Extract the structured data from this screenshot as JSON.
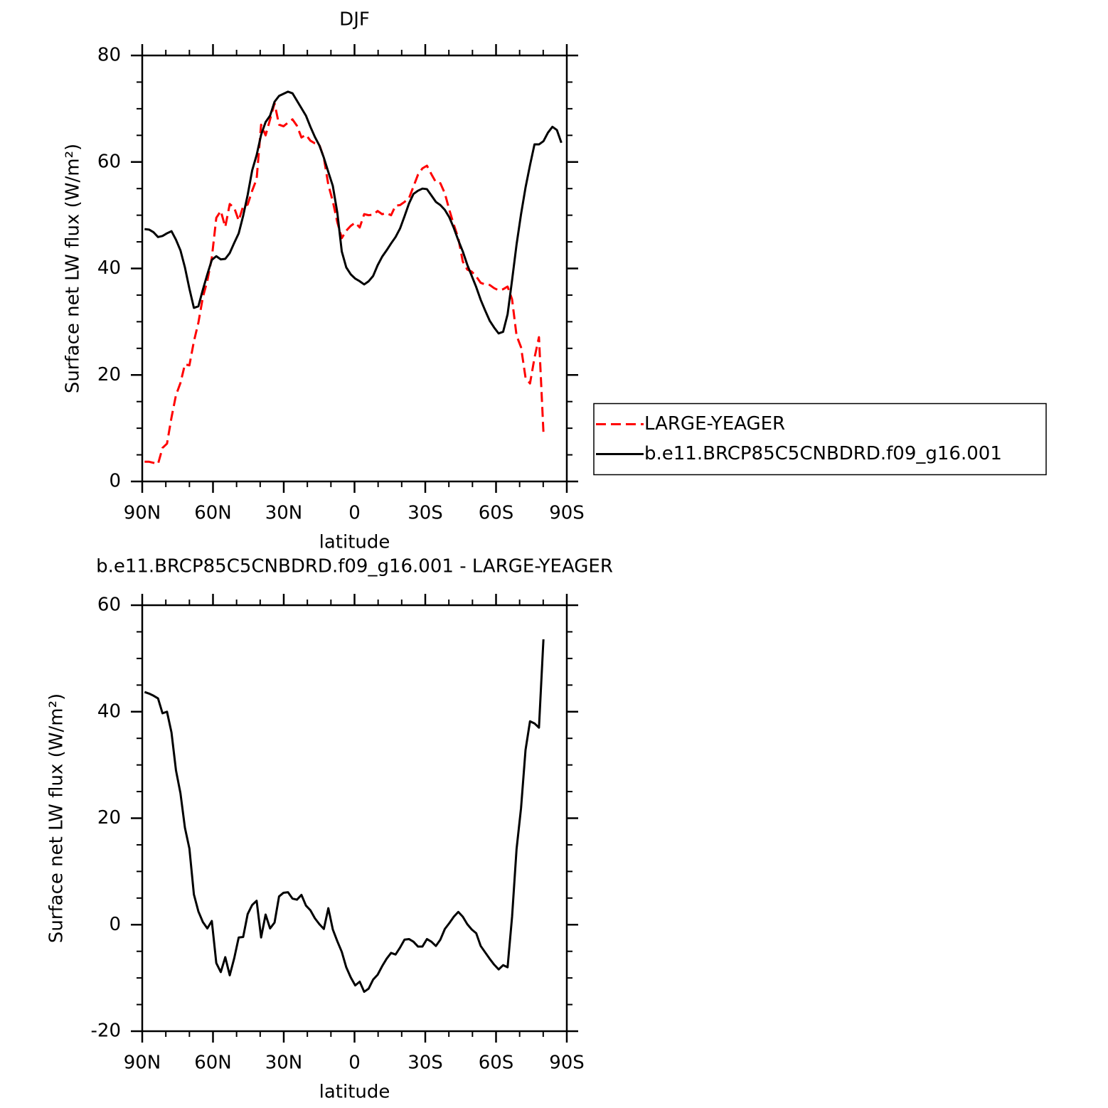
{
  "chart_data": [
    {
      "type": "line",
      "title": "DJF",
      "xlabel": "latitude",
      "ylabel": "Surface net LW flux (W/m²)",
      "x": [
        89,
        87.1,
        85.2,
        83.3,
        81.4,
        79.5,
        77.6,
        75.7,
        73.8,
        71.9,
        70,
        68.1,
        66.2,
        64.3,
        62.4,
        60.5,
        58.6,
        56.7,
        54.8,
        52.9,
        51,
        49.1,
        47.2,
        45.3,
        43.4,
        41.5,
        39.6,
        37.7,
        35.8,
        33.9,
        32,
        30.1,
        28.2,
        26.3,
        24.4,
        22.5,
        20.6,
        18.7,
        16.8,
        14.9,
        13,
        11.1,
        9.2,
        7.3,
        5.4,
        3.5,
        1.6,
        -0.3,
        -2.2,
        -4.1,
        -6,
        -7.9,
        -9.8,
        -11.7,
        -13.6,
        -15.5,
        -17.4,
        -19.3,
        -21.2,
        -23.1,
        -25,
        -26.9,
        -28.8,
        -30.7,
        -32.6,
        -34.5,
        -36.4,
        -38.3,
        -40.2,
        -42.1,
        -44,
        -45.9,
        -47.8,
        -49.7,
        -51.6,
        -53.5,
        -55.4,
        -57.3,
        -59.2,
        -61.1,
        -63,
        -64.9,
        -66.8,
        -68.7,
        -70.6,
        -72.5,
        -74.4,
        -76.3,
        -78.2,
        -80.1,
        -82,
        -83.9,
        -85.8,
        -87.7
      ],
      "series": [
        {
          "name": "LARGE-YEAGER",
          "color": "#ff0000",
          "dash": "dashed",
          "values": [
            3.7,
            3.7,
            3.5,
            3.3,
            6.3,
            7.1,
            12,
            16.2,
            18.5,
            22,
            21.8,
            26.3,
            29.8,
            34.6,
            37.7,
            42,
            49.5,
            50.8,
            47.8,
            52.1,
            51.4,
            49,
            51.7,
            52,
            54.6,
            56.8,
            67,
            65,
            68,
            71,
            67,
            66.7,
            67.4,
            68,
            66.8,
            64.6,
            65.1,
            64,
            63.5,
            63.2,
            60.8,
            55.7,
            52.6,
            48.7,
            45.7,
            47.1,
            48,
            48.6,
            47.7,
            50.2,
            50,
            50.1,
            50.8,
            50.2,
            50.4,
            50,
            51.8,
            51.9,
            52.5,
            53.2,
            55.4,
            57.6,
            58.8,
            59.3,
            57.7,
            56.2,
            56,
            54.1,
            51,
            48.2,
            45.7,
            41.3,
            39.8,
            39.4,
            38.5,
            37.3,
            37,
            36.9,
            36.3,
            35.9,
            36.1,
            36.6,
            34.2,
            27.4,
            25.2,
            19.5,
            18.4,
            23.2,
            27.1,
            9.2,
            null,
            null,
            null,
            null
          ]
        },
        {
          "name": "b.e11.BRCP85C5CNBDRD.f09_g16.001",
          "color": "#000000",
          "dash": "solid",
          "values": [
            47.4,
            47.3,
            46.8,
            45.9,
            46.1,
            46.6,
            47,
            45.4,
            43.4,
            40.2,
            36.2,
            32.6,
            32.9,
            36,
            38.9,
            41.6,
            42.3,
            41.7,
            41.8,
            42.9,
            44.8,
            46.6,
            49.9,
            53.8,
            58.4,
            61.3,
            65.1,
            67.5,
            68.7,
            71.3,
            72.4,
            72.8,
            73.2,
            72.9,
            71.5,
            70.1,
            68.7,
            66.6,
            64.7,
            63.1,
            60.8,
            58.1,
            55.5,
            50.5,
            43.2,
            40.2,
            38.9,
            38.1,
            37.6,
            37,
            37.6,
            38.6,
            40.6,
            42.2,
            43.4,
            44.7,
            45.9,
            47.5,
            49.8,
            52.2,
            54,
            54.6,
            55,
            54.9,
            53.7,
            52.5,
            51.9,
            51,
            49.6,
            47.6,
            45.3,
            43.2,
            40.7,
            38.6,
            36.5,
            34.1,
            32.1,
            30.2,
            28.9,
            27.8,
            28.1,
            31.4,
            37.8,
            44.5,
            50.2,
            55.2,
            59.4,
            63.3,
            63.3,
            63.9,
            65.5,
            66.6,
            66,
            63.6
          ]
        }
      ],
      "xlim": [
        90,
        -90
      ],
      "xticks": [
        {
          "value": 90,
          "label": "90N"
        },
        {
          "value": 60,
          "label": "60N"
        },
        {
          "value": 30,
          "label": "30N"
        },
        0,
        {
          "value": -30,
          "label": "30S"
        },
        {
          "value": -60,
          "label": "60S"
        },
        {
          "value": -90,
          "label": "90S"
        }
      ],
      "xminorticks": [
        80,
        70,
        50,
        40,
        20,
        10,
        -10,
        -20,
        -40,
        -50,
        -70,
        -80
      ],
      "ylim": [
        0,
        80
      ],
      "yticks": [
        0,
        20,
        40,
        60,
        80
      ],
      "yminorticks": [
        5,
        10,
        15,
        25,
        30,
        35,
        45,
        50,
        55,
        65,
        70,
        75
      ],
      "legend": "right"
    },
    {
      "type": "line",
      "title": "b.e11.BRCP85C5CNBDRD.f09_g16.001 - LARGE-YEAGER",
      "xlabel": "latitude",
      "ylabel": "Surface net LW flux (W/m²)",
      "x": [
        89,
        87.1,
        85.2,
        83.3,
        81.4,
        79.5,
        77.6,
        75.7,
        73.8,
        71.9,
        70,
        68.1,
        66.2,
        64.3,
        62.4,
        60.5,
        58.6,
        56.7,
        54.8,
        52.9,
        51,
        49.1,
        47.2,
        45.3,
        43.4,
        41.5,
        39.6,
        37.7,
        35.8,
        33.9,
        32,
        30.1,
        28.2,
        26.3,
        24.4,
        22.5,
        20.6,
        18.7,
        16.8,
        14.9,
        13,
        11.1,
        9.2,
        7.3,
        5.4,
        3.5,
        1.6,
        -0.3,
        -2.2,
        -4.1,
        -6,
        -7.9,
        -9.8,
        -11.7,
        -13.6,
        -15.5,
        -17.4,
        -19.3,
        -21.2,
        -23.1,
        -25,
        -26.9,
        -28.8,
        -30.7,
        -32.6,
        -34.5,
        -36.4,
        -38.3,
        -40.2,
        -42.1,
        -44,
        -45.9,
        -47.8,
        -49.7,
        -51.6,
        -53.5,
        -55.4,
        -57.3,
        -59.2,
        -61.1,
        -63,
        -64.9,
        -66.8,
        -68.7,
        -70.6,
        -72.5,
        -74.4,
        -76.3,
        -78.2,
        -80.1,
        -82,
        -83.9,
        -85.8,
        -87.7
      ],
      "series": [
        {
          "color": "#000000",
          "dash": "solid",
          "values": [
            43.7,
            43.4,
            43,
            42.5,
            39.7,
            40,
            36.1,
            29,
            24.7,
            18.2,
            14.3,
            5.7,
            2.5,
            0.5,
            -0.7,
            0.7,
            -7.2,
            -8.9,
            -6.1,
            -9.5,
            -6.3,
            -2.4,
            -2.3,
            2,
            3.7,
            4.5,
            -2.4,
            1.9,
            -0.7,
            0.4,
            5.3,
            6,
            6.1,
            4.9,
            4.7,
            5.6,
            3.6,
            2.7,
            1.2,
            0.1,
            -0.8,
            3.1,
            -0.9,
            -3.1,
            -5.1,
            -8,
            -9.9,
            -11.4,
            -10.7,
            -12.6,
            -12,
            -10.3,
            -9.4,
            -7.8,
            -6.4,
            -5.3,
            -5.6,
            -4.3,
            -2.8,
            -2.7,
            -3.2,
            -4.1,
            -4.1,
            -2.7,
            -3.2,
            -4,
            -2.8,
            -0.8,
            0.3,
            1.5,
            2.4,
            1.5,
            0.1,
            -0.9,
            -1.6,
            -4,
            -5.2,
            -6.4,
            -7.5,
            -8.4,
            -7.6,
            -8,
            1.5,
            14.2,
            21.9,
            32.8,
            38.2,
            37.8,
            37,
            53.6,
            null,
            null,
            null,
            null
          ]
        }
      ],
      "xlim": [
        90,
        -90
      ],
      "xticks": [
        {
          "value": 90,
          "label": "90N"
        },
        {
          "value": 60,
          "label": "60N"
        },
        {
          "value": 30,
          "label": "30N"
        },
        0,
        {
          "value": -30,
          "label": "30S"
        },
        {
          "value": -60,
          "label": "60S"
        },
        {
          "value": -90,
          "label": "90S"
        }
      ],
      "xminorticks": [
        80,
        70,
        50,
        40,
        20,
        10,
        -10,
        -20,
        -40,
        -50,
        -70,
        -80
      ],
      "ylim": [
        -20,
        60
      ],
      "yticks": [
        -20,
        0,
        20,
        40,
        60
      ],
      "yminorticks": [
        -15,
        -10,
        -5,
        5,
        10,
        15,
        25,
        30,
        35,
        45,
        50,
        55
      ]
    }
  ]
}
